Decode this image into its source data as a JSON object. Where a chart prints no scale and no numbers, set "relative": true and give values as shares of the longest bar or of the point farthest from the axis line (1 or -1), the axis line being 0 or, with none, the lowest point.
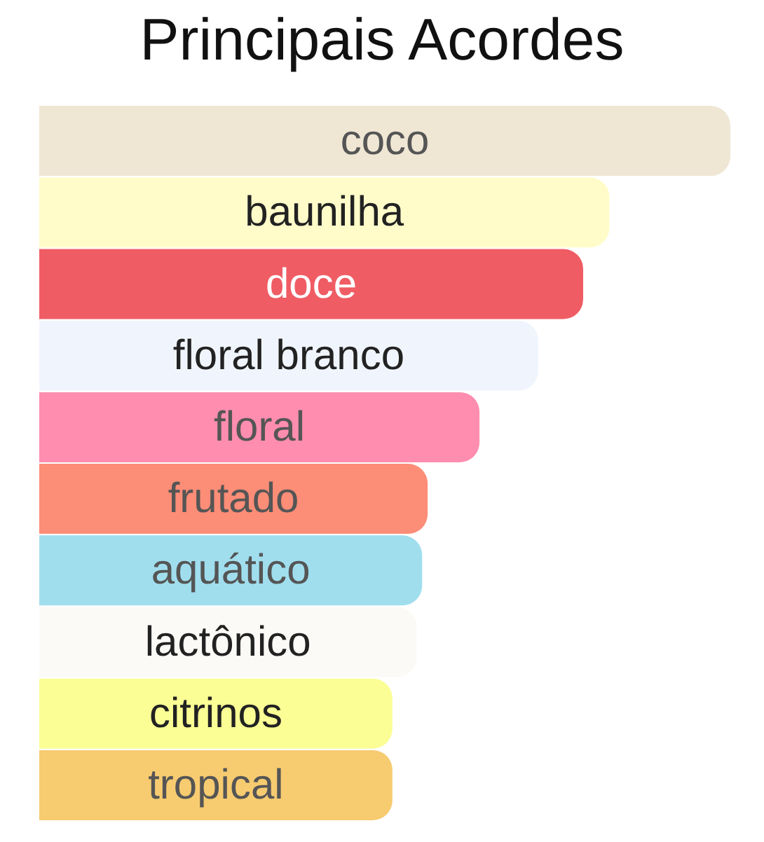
{
  "chart_data": {
    "type": "bar",
    "title": "Principais Acordes",
    "orientation": "horizontal",
    "relative": true,
    "categories": [
      "coco",
      "baunilha",
      "doce",
      "floral branco",
      "floral",
      "frutado",
      "aquático",
      "lactônico",
      "citrinos",
      "tropical"
    ],
    "values": [
      1,
      0.825,
      0.787,
      0.722,
      0.637,
      0.562,
      0.554,
      0.546,
      0.511,
      0.511
    ],
    "colors": [
      "#efe6d4",
      "#fffcc9",
      "#f05c64",
      "#f0f5fd",
      "#fe8daf",
      "#fc8d77",
      "#a0deee",
      "#fbfaf6",
      "#fbfe95",
      "#f7cb70"
    ]
  }
}
